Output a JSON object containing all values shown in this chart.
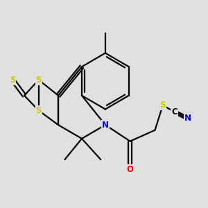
{
  "bg_color": "#e0e0e0",
  "S_color": "#cccc00",
  "N_color": "#0000dd",
  "O_color": "#ff0000",
  "C_color": "#000000",
  "bond_color": "#000000",
  "figsize": [
    3.0,
    3.0
  ],
  "dpi": 100,
  "xlim": [
    0,
    10
  ],
  "ylim": [
    0,
    10
  ],
  "lw": 1.6,
  "fs": 8.5
}
